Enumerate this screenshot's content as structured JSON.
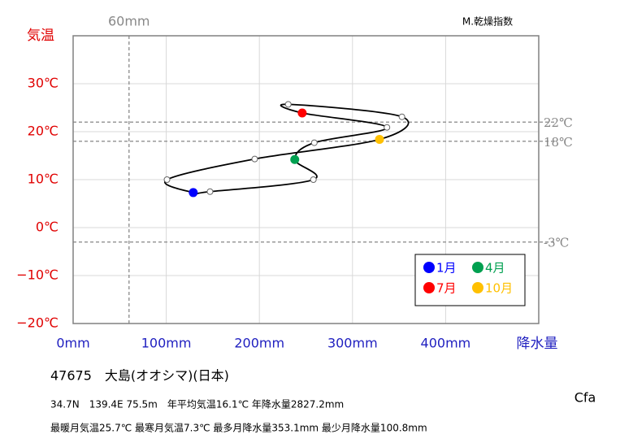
{
  "chart_data": {
    "type": "line",
    "y_label": "気温",
    "x_label": "降水量",
    "corner_note": "M.乾燥指数",
    "xlim": [
      0,
      500
    ],
    "ylim": [
      -20,
      40
    ],
    "xticks": [
      {
        "value": 0,
        "label": "0mm"
      },
      {
        "value": 100,
        "label": "100mm"
      },
      {
        "value": 200,
        "label": "200mm"
      },
      {
        "value": 300,
        "label": "300mm"
      },
      {
        "value": 400,
        "label": "400mm"
      }
    ],
    "yticks": [
      {
        "value": -20,
        "label": "−20℃"
      },
      {
        "value": -10,
        "label": "−10℃"
      },
      {
        "value": 0,
        "label": "0℃"
      },
      {
        "value": 10,
        "label": "10℃"
      },
      {
        "value": 20,
        "label": "20℃"
      },
      {
        "value": 30,
        "label": "30℃"
      }
    ],
    "grid": true,
    "x_reference": [
      {
        "value": 60,
        "label": "60mm"
      }
    ],
    "y_reference": [
      {
        "value": 22,
        "label": "22℃"
      },
      {
        "value": 18,
        "label": "18℃"
      },
      {
        "value": -3,
        "label": "-3℃"
      }
    ],
    "curve": {
      "color": "#000000",
      "x": [
        129,
        147,
        258,
        238,
        259,
        337,
        246,
        231,
        353.1,
        329,
        195,
        100.8
      ],
      "values": [
        7.3,
        7.5,
        10.0,
        14.2,
        17.7,
        20.9,
        23.9,
        25.7,
        23.1,
        18.4,
        14.3,
        10.0
      ]
    },
    "series": [
      {
        "name": "1月",
        "color": "#0000ff",
        "x": [
          129
        ],
        "values": [
          7.3
        ]
      },
      {
        "name": "4月",
        "color": "#00a050",
        "x": [
          238
        ],
        "values": [
          14.2
        ]
      },
      {
        "name": "7月",
        "color": "#ff0000",
        "x": [
          246
        ],
        "values": [
          23.9
        ]
      },
      {
        "name": "10月",
        "color": "#ffc000",
        "x": [
          329
        ],
        "values": [
          18.4
        ]
      }
    ]
  },
  "footer": {
    "station": "47675　大島(オオシマ)(日本)",
    "line1": "34.7N　139.4E 75.5m　年平均気温16.1℃ 年降水量2827.2mm",
    "line2": "最暖月気温25.7℃ 最寒月気温7.3℃ 最多月降水量353.1mm 最少月降水量100.8mm",
    "climate": "Cfa"
  }
}
